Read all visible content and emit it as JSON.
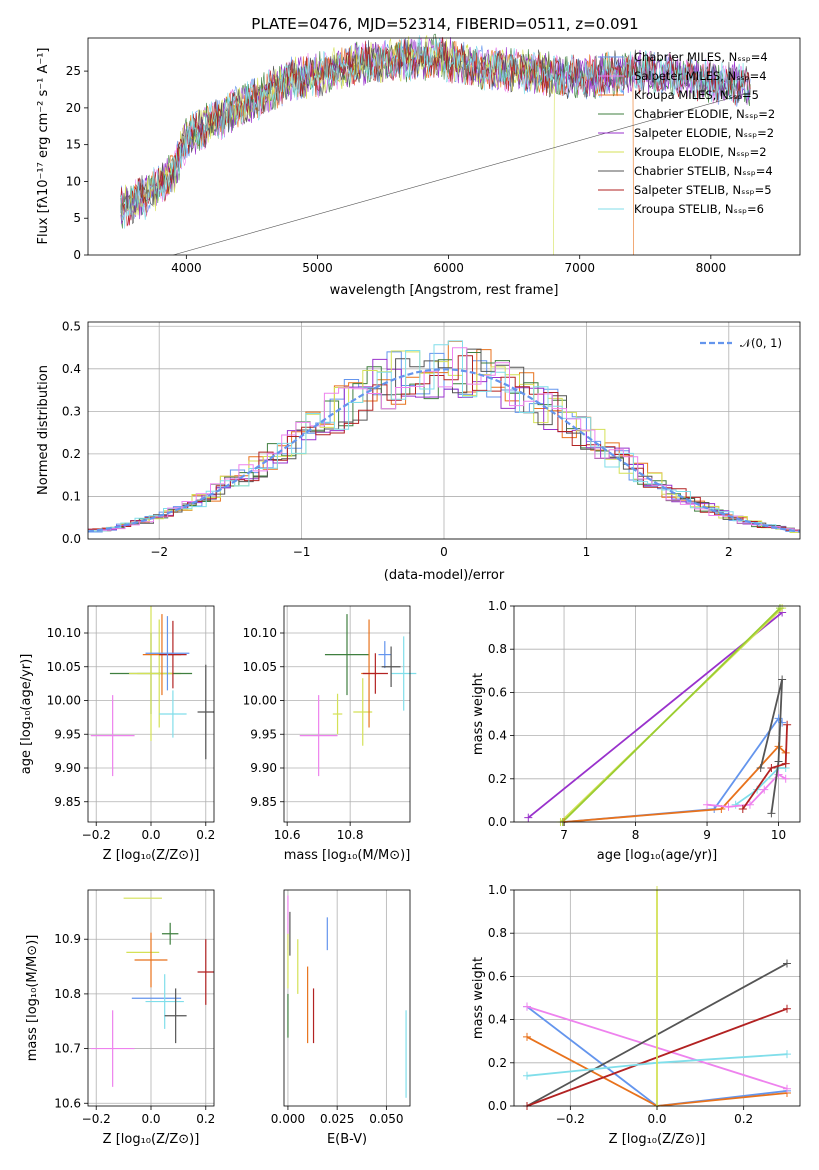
{
  "figure_title": "PLATE=0476, MJD=52314, FIBERID=0511, z=0.091",
  "chart_data": [
    {
      "id": "spectrum",
      "type": "line",
      "xlabel": "wavelength [Angstrom, rest frame]",
      "ylabel": "Flux [fλ10⁻¹⁷ erg cm⁻² s⁻¹ A⁻¹]",
      "xlim": [
        3250,
        8680
      ],
      "ylim": [
        0,
        29.5
      ],
      "xticks": [
        4000,
        5000,
        6000,
        7000,
        8000
      ],
      "yticks": [
        0,
        5,
        10,
        15,
        20,
        25
      ],
      "legend_position": "top-right",
      "legend": [
        "Chabrier MILES, Nₛₛₚ=4",
        "Salpeter MILES, Nₛₛₚ=4",
        "Kroupa MILES, Nₛₛₚ=5",
        "Chabrier ELODIE, Nₛₛₚ=2",
        "Salpeter ELODIE, Nₛₛₚ=2",
        "Kroupa ELODIE, Nₛₛₚ=2",
        "Chabrier STELIB, Nₛₛₚ=4",
        "Salpeter STELIB, Nₛₛₚ=5",
        "Kroupa STELIB, Nₛₛₚ=6"
      ],
      "continuum": [
        [
          3500,
          6.5
        ],
        [
          3700,
          8
        ],
        [
          3900,
          11
        ],
        [
          4000,
          16
        ],
        [
          4200,
          18
        ],
        [
          4500,
          21
        ],
        [
          4800,
          24
        ],
        [
          5000,
          24.5
        ],
        [
          5300,
          26
        ],
        [
          5600,
          26.5
        ],
        [
          5900,
          27
        ],
        [
          6200,
          25.5
        ],
        [
          6600,
          25
        ],
        [
          7000,
          24
        ],
        [
          7400,
          25
        ],
        [
          7700,
          24.5
        ],
        [
          8000,
          23.5
        ],
        [
          8300,
          23
        ]
      ]
    },
    {
      "id": "residual_hist",
      "type": "line",
      "xlabel": "(data-model)/error",
      "ylabel": "Normed distribution",
      "xlim": [
        -2.5,
        2.5
      ],
      "ylim": [
        0,
        0.51
      ],
      "xticks": [
        -2,
        -1,
        0,
        1,
        2
      ],
      "yticks": [
        0.0,
        0.1,
        0.2,
        0.3,
        0.4,
        0.5
      ],
      "grid": true,
      "legend_position": "top-right",
      "legend": [
        "𝒩(0, 1)"
      ]
    },
    {
      "id": "age_vs_Z",
      "type": "scatter",
      "xlabel": "Z [log₁₀(Z/Z⊙)]",
      "ylabel": "age  [log₁₀(age/yr)]",
      "xlim": [
        -0.23,
        0.23
      ],
      "ylim": [
        9.82,
        10.14
      ],
      "xticks": [
        -0.2,
        0.0,
        0.2
      ],
      "yticks": [
        9.85,
        9.9,
        9.95,
        10.0,
        10.05,
        10.1
      ],
      "grid": true,
      "points": [
        {
          "x": -0.14,
          "y": 9.948,
          "xerr": 0.08,
          "yerr": 0.06
        },
        {
          "x": 0.03,
          "y": 10.04,
          "xerr": 0.08,
          "yerr": 0.08
        },
        {
          "x": 0.0,
          "y": 10.04,
          "xerr": 0.15,
          "yerr": 0.06
        },
        {
          "x": 0.0,
          "y": 10.04,
          "xerr": 0.08,
          "yerr": 0.1
        },
        {
          "x": 0.04,
          "y": 10.068,
          "xerr": 0.07,
          "yerr": 0.06
        },
        {
          "x": 0.08,
          "y": 10.068,
          "xerr": 0.05,
          "yerr": 0.05
        },
        {
          "x": 0.06,
          "y": 10.07,
          "xerr": 0.08,
          "yerr": 0.055
        },
        {
          "x": 0.08,
          "y": 9.98,
          "xerr": 0.05,
          "yerr": 0.035
        },
        {
          "x": 0.2,
          "y": 9.983,
          "xerr": 0.03,
          "yerr": 0.07
        }
      ]
    },
    {
      "id": "age_vs_mass",
      "type": "scatter",
      "xlabel": "mass [log₁₀(M/M⊙)]",
      "ylabel": "",
      "xlim": [
        10.59,
        10.99
      ],
      "ylim": [
        9.82,
        10.14
      ],
      "xticks": [
        10.6,
        10.8
      ],
      "yticks": [
        9.85,
        9.9,
        9.95,
        10.0,
        10.05,
        10.1
      ],
      "grid": true,
      "points": [
        {
          "x": 10.7,
          "y": 9.948,
          "xerr": 0.06,
          "yerr": 0.06
        },
        {
          "x": 10.76,
          "y": 9.98,
          "xerr": 0.015,
          "yerr": 0.03
        },
        {
          "x": 10.79,
          "y": 10.068,
          "xerr": 0.07,
          "yerr": 0.06
        },
        {
          "x": 10.84,
          "y": 9.983,
          "xerr": 0.03,
          "yerr": 0.05
        },
        {
          "x": 10.86,
          "y": 10.04,
          "xerr": 0.025,
          "yerr": 0.08
        },
        {
          "x": 10.88,
          "y": 10.04,
          "xerr": 0.04,
          "yerr": 0.03
        },
        {
          "x": 10.91,
          "y": 10.068,
          "xerr": 0.02,
          "yerr": 0.02
        },
        {
          "x": 10.97,
          "y": 10.04,
          "xerr": 0.04,
          "yerr": 0.055
        },
        {
          "x": 10.93,
          "y": 10.05,
          "xerr": 0.03,
          "yerr": 0.03
        }
      ]
    },
    {
      "id": "massweight_vs_age",
      "type": "line",
      "xlabel": "age  [log₁₀(age/yr)]",
      "ylabel": "mass weight",
      "xlim": [
        6.3,
        10.3
      ],
      "ylim": [
        0,
        1.0
      ],
      "xticks": [
        6,
        7,
        8,
        9,
        10
      ],
      "yticks": [
        0.0,
        0.2,
        0.4,
        0.6,
        0.8,
        1.0
      ],
      "grid": true,
      "series": [
        {
          "values": [
            [
              6.5,
              0.02
            ],
            [
              10.05,
              0.97
            ]
          ]
        },
        {
          "values": [
            [
              6.95,
              0.0
            ],
            [
              10.05,
              0.99
            ]
          ]
        },
        {
          "values": [
            [
              6.98,
              0.0
            ],
            [
              10.02,
              0.99
            ]
          ]
        },
        {
          "values": [
            [
              7.0,
              0.0
            ],
            [
              9.1,
              0.06
            ],
            [
              10.0,
              0.48
            ],
            [
              10.05,
              0.46
            ]
          ]
        },
        {
          "values": [
            [
              7.0,
              0.0
            ],
            [
              9.2,
              0.06
            ],
            [
              10.0,
              0.35
            ],
            [
              10.1,
              0.32
            ]
          ]
        },
        {
          "values": [
            [
              9.4,
              0.08
            ],
            [
              9.7,
              0.15
            ],
            [
              10.0,
              0.25
            ],
            [
              10.1,
              0.25
            ]
          ]
        },
        {
          "values": [
            [
              9.0,
              0.08
            ],
            [
              9.3,
              0.07
            ],
            [
              9.6,
              0.08
            ],
            [
              9.8,
              0.15
            ],
            [
              10.0,
              0.22
            ],
            [
              10.1,
              0.2
            ]
          ]
        },
        {
          "values": [
            [
              9.9,
              0.04
            ],
            [
              10.0,
              0.28
            ],
            [
              10.05,
              0.66
            ],
            [
              9.75,
              0.25
            ]
          ]
        },
        {
          "values": [
            [
              9.5,
              0.06
            ],
            [
              9.9,
              0.25
            ],
            [
              10.1,
              0.27
            ],
            [
              10.12,
              0.45
            ]
          ]
        }
      ]
    },
    {
      "id": "mass_vs_Z",
      "type": "scatter",
      "xlabel": "Z [log₁₀(Z/Z⊙)]",
      "ylabel": "mass [log₁₀(M/M⊙)]",
      "xlim": [
        -0.23,
        0.23
      ],
      "ylim": [
        10.595,
        10.99
      ],
      "xticks": [
        -0.2,
        0.0,
        0.2
      ],
      "yticks": [
        10.6,
        10.7,
        10.8,
        10.9
      ],
      "grid": true,
      "points": [
        {
          "x": -0.14,
          "y": 10.7,
          "xerr": 0.08,
          "yerr": 0.07
        },
        {
          "x": -0.03,
          "y": 10.975,
          "xerr": 0.07,
          "yerr": 0.0
        },
        {
          "x": 0.07,
          "y": 10.91,
          "xerr": 0.03,
          "yerr": 0.02
        },
        {
          "x": -0.03,
          "y": 10.876,
          "xerr": 0.06,
          "yerr": 0.0
        },
        {
          "x": 0.0,
          "y": 10.862,
          "xerr": 0.06,
          "yerr": 0.05
        },
        {
          "x": 0.2,
          "y": 10.84,
          "xerr": 0.03,
          "yerr": 0.06
        },
        {
          "x": 0.02,
          "y": 10.792,
          "xerr": 0.09,
          "yerr": 0.0
        },
        {
          "x": 0.05,
          "y": 10.786,
          "xerr": 0.07,
          "yerr": 0.05
        },
        {
          "x": 0.09,
          "y": 10.76,
          "xerr": 0.04,
          "yerr": 0.05
        }
      ]
    },
    {
      "id": "mass_vs_ebv",
      "type": "scatter",
      "xlabel": "E(B-V)",
      "ylabel": "",
      "xlim": [
        -0.002,
        0.062
      ],
      "ylim": [
        10.595,
        10.99
      ],
      "xticks": [
        0.0,
        0.025,
        0.05
      ],
      "grid": true,
      "points": [
        {
          "x": 0.0,
          "y": 10.93,
          "yerr": 0.05
        },
        {
          "x": 0.0,
          "y": 10.86,
          "yerr": 0.05
        },
        {
          "x": 0.0,
          "y": 10.76,
          "yerr": 0.04
        },
        {
          "x": 0.005,
          "y": 10.85,
          "yerr": 0.05
        },
        {
          "x": 0.01,
          "y": 10.78,
          "yerr": 0.07
        },
        {
          "x": 0.013,
          "y": 10.76,
          "yerr": 0.05
        },
        {
          "x": 0.02,
          "y": 10.91,
          "yerr": 0.03
        },
        {
          "x": 0.06,
          "y": 10.69,
          "yerr": 0.08
        },
        {
          "x": 0.001,
          "y": 10.91,
          "yerr": 0.04
        }
      ]
    },
    {
      "id": "massweight_vs_Z",
      "type": "line",
      "xlabel": "Z [log₁₀(Z/Z⊙)]",
      "ylabel": "mass weight",
      "xlim": [
        -0.33,
        0.33
      ],
      "ylim": [
        0,
        1.0
      ],
      "xticks": [
        -0.2,
        0.0,
        0.2
      ],
      "yticks": [
        0.0,
        0.2,
        0.4,
        0.6,
        0.8,
        1.0
      ],
      "grid": true,
      "series": [
        {
          "values": [
            [
              -0.3,
              0.46
            ],
            [
              0.0,
              0.0
            ],
            [
              0.3,
              0.07
            ]
          ]
        },
        {
          "values": [
            [
              -0.3,
              0.32
            ],
            [
              0.0,
              0.0
            ],
            [
              0.3,
              0.06
            ]
          ]
        },
        {
          "values": [
            [
              -0.3,
              0.46
            ],
            [
              0.3,
              0.08
            ]
          ]
        },
        {
          "values": [
            [
              -0.3,
              0.0
            ],
            [
              0.3,
              0.66
            ]
          ]
        },
        {
          "values": [
            [
              -0.3,
              0.0
            ],
            [
              0.3,
              0.45
            ]
          ]
        },
        {
          "values": [
            [
              -0.3,
              0.14
            ],
            [
              0.0,
              0.2
            ],
            [
              0.3,
              0.24
            ]
          ]
        },
        {
          "values": [
            [
              0.0,
              0.0
            ],
            [
              0.0,
              1.0
            ]
          ]
        }
      ]
    }
  ],
  "colors": [
    "#6495ed",
    "#ee82ee",
    "#e8721c",
    "#3f7f3f",
    "#9932cc",
    "#d4e157",
    "#555555",
    "#b22222",
    "#80deea"
  ]
}
